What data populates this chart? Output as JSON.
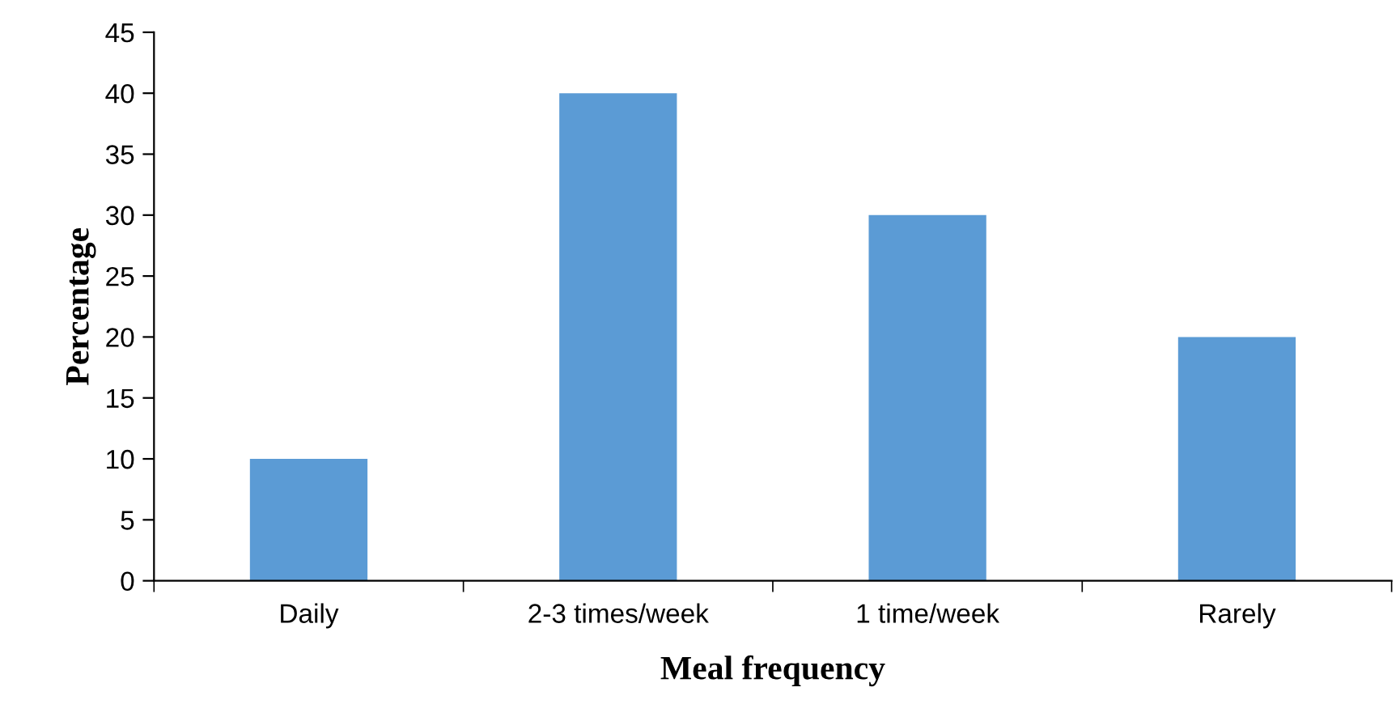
{
  "chart_data": {
    "type": "bar",
    "xlabel": "Meal frequency",
    "ylabel": "Percentage",
    "categories": [
      "Daily",
      "2-3 times/week",
      "1 time/week",
      "Rarely"
    ],
    "values": [
      10,
      40,
      30,
      20
    ],
    "color": "#5b9bd5",
    "ylim": [
      0,
      45
    ],
    "yticks": [
      0,
      5,
      10,
      15,
      20,
      25,
      30,
      35,
      40,
      45
    ],
    "grid": false,
    "legend": false
  }
}
